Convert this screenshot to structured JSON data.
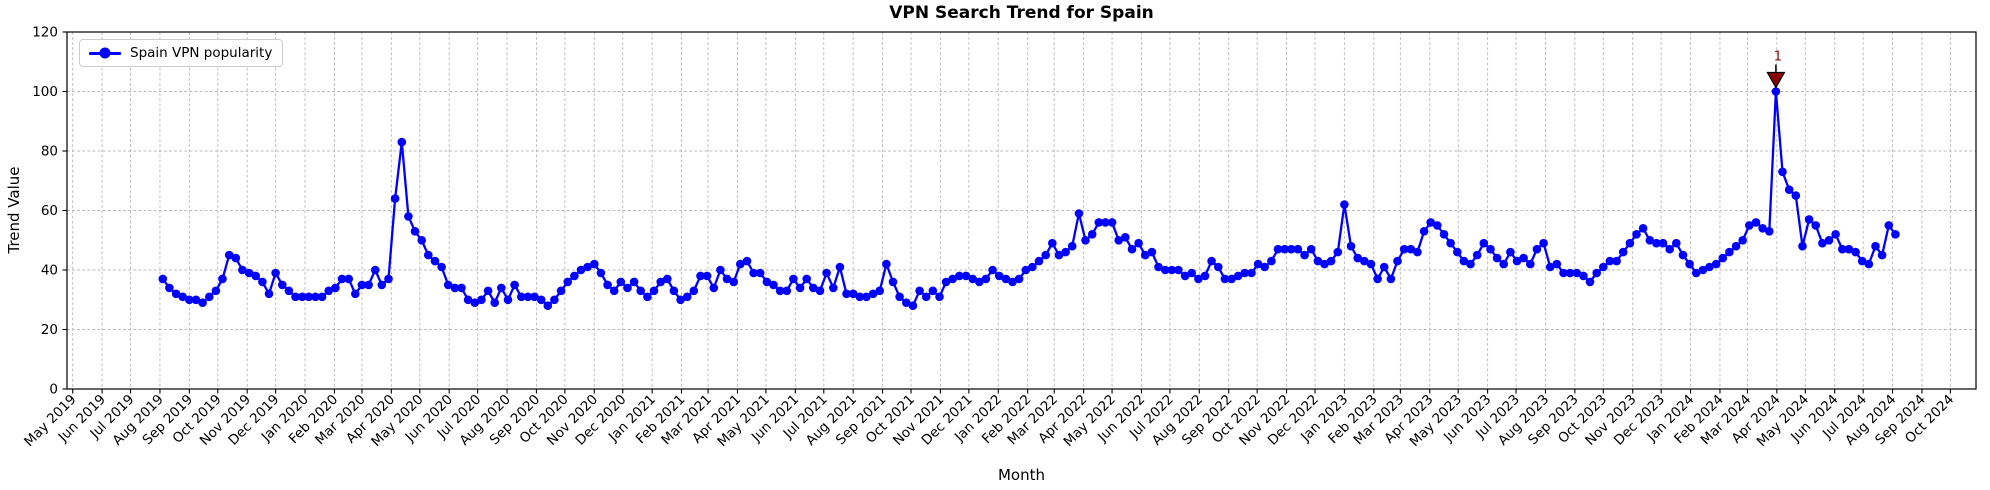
{
  "chart_data": {
    "type": "line",
    "title": "VPN Search Trend for Spain",
    "xlabel": "Month",
    "ylabel": "Trend Value",
    "ylim": [
      0,
      120
    ],
    "yticks": [
      0,
      20,
      40,
      60,
      80,
      100,
      120
    ],
    "grid": true,
    "grid_color": "#b8b8b8",
    "legend_position": "upper left",
    "x_tick_labels": [
      "May 2019",
      "Jun 2019",
      "Jul 2019",
      "Aug 2019",
      "Sep 2019",
      "Oct 2019",
      "Nov 2019",
      "Dec 2019",
      "Jan 2020",
      "Feb 2020",
      "Mar 2020",
      "Apr 2020",
      "May 2020",
      "Jun 2020",
      "Jul 2020",
      "Aug 2020",
      "Sep 2020",
      "Oct 2020",
      "Nov 2020",
      "Dec 2020",
      "Jan 2021",
      "Feb 2021",
      "Mar 2021",
      "Apr 2021",
      "May 2021",
      "Jun 2021",
      "Jul 2021",
      "Aug 2021",
      "Sep 2021",
      "Oct 2021",
      "Nov 2021",
      "Dec 2021",
      "Jan 2022",
      "Feb 2022",
      "Mar 2022",
      "Apr 2022",
      "May 2022",
      "Jun 2022",
      "Jul 2022",
      "Aug 2022",
      "Sep 2022",
      "Oct 2022",
      "Nov 2022",
      "Dec 2022",
      "Jan 2023",
      "Feb 2023",
      "Mar 2023",
      "Apr 2023",
      "May 2023",
      "Jun 2023",
      "Jul 2023",
      "Aug 2023",
      "Sep 2023",
      "Oct 2023",
      "Nov 2023",
      "Dec 2023",
      "Jan 2024",
      "Feb 2024",
      "Mar 2024",
      "Apr 2024",
      "May 2024",
      "Jun 2024",
      "Jul 2024",
      "Aug 2024",
      "Sep 2024",
      "Oct 2024"
    ],
    "series": [
      {
        "name": "Spain VPN popularity",
        "color": "#0000ff",
        "marker": "circle",
        "start_week": "2019-08-04",
        "interval_days": 7,
        "values": [
          37,
          34,
          32,
          31,
          30,
          30,
          29,
          31,
          33,
          37,
          45,
          44,
          40,
          39,
          38,
          36,
          32,
          39,
          35,
          33,
          31,
          31,
          31,
          31,
          31,
          33,
          34,
          37,
          37,
          32,
          35,
          35,
          40,
          35,
          37,
          64,
          83,
          58,
          53,
          50,
          45,
          43,
          41,
          35,
          34,
          34,
          30,
          29,
          30,
          33,
          29,
          34,
          30,
          35,
          31,
          31,
          31,
          30,
          28,
          30,
          33,
          36,
          38,
          40,
          41,
          42,
          39,
          35,
          33,
          36,
          34,
          36,
          33,
          31,
          33,
          36,
          37,
          33,
          30,
          31,
          33,
          38,
          38,
          34,
          40,
          37,
          36,
          42,
          43,
          39,
          39,
          36,
          35,
          33,
          33,
          37,
          34,
          37,
          34,
          33,
          39,
          34,
          41,
          32,
          32,
          31,
          31,
          32,
          33,
          42,
          36,
          31,
          29,
          28,
          33,
          31,
          33,
          31,
          36,
          37,
          38,
          38,
          37,
          36,
          37,
          40,
          38,
          37,
          36,
          37,
          40,
          41,
          43,
          45,
          49,
          45,
          46,
          48,
          59,
          50,
          52,
          56,
          56,
          56,
          50,
          51,
          47,
          49,
          45,
          46,
          41,
          40,
          40,
          40,
          38,
          39,
          37,
          38,
          43,
          41,
          37,
          37,
          38,
          39,
          39,
          42,
          41,
          43,
          47,
          47,
          47,
          47,
          45,
          47,
          43,
          42,
          43,
          46,
          62,
          48,
          44,
          43,
          42,
          37,
          41,
          37,
          43,
          47,
          47,
          46,
          53,
          56,
          55,
          52,
          49,
          46,
          43,
          42,
          45,
          49,
          47,
          44,
          42,
          46,
          43,
          44,
          42,
          47,
          49,
          41,
          42,
          39,
          39,
          39,
          38,
          36,
          39,
          41,
          43,
          43,
          46,
          49,
          52,
          54,
          50,
          49,
          49,
          47,
          49,
          45,
          42,
          39,
          40,
          41,
          42,
          44,
          46,
          48,
          50,
          55,
          56,
          54,
          53,
          100,
          73,
          67,
          65,
          48,
          57,
          55,
          49,
          50,
          52,
          47,
          47,
          46,
          43,
          42,
          48,
          45,
          55,
          52
        ]
      }
    ],
    "annotations": [
      {
        "label": "1",
        "week": "2024-03-31",
        "value": 100,
        "marker": "triangle-down",
        "fill": "#8b0000",
        "edge": "#000000",
        "text_color": "#8b1a1a"
      }
    ]
  },
  "legend": {
    "items": [
      {
        "label": "Spain VPN popularity",
        "color": "#0000ff"
      }
    ]
  }
}
